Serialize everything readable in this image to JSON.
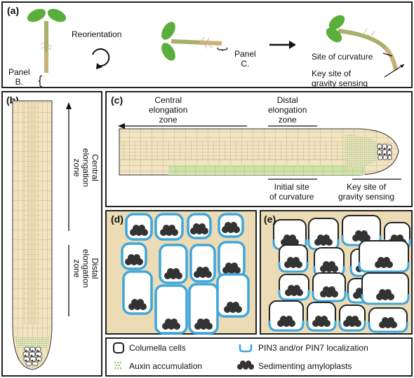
{
  "panel_a": {
    "label": "(a)",
    "reorientation": "Reorientation",
    "panel_b_ref": "Panel\nB.",
    "panel_c_ref": "Panel\nC.",
    "site_of_curvature": "Site of curvature",
    "key_site": "Key site of\ngravity sensing"
  },
  "panel_b": {
    "label": "(b)",
    "central_zone": "Central\nelongation\nzone",
    "distal_zone": "Distal\nelongation\nzone"
  },
  "panel_c": {
    "label": "(c)",
    "central_zone": "Central\nelongation\nzone",
    "distal_zone": "Distal\nelongation\nzone",
    "initial_site": "Initial site\nof curvature",
    "key_site": "Key site of\ngravity sensing"
  },
  "panel_d": {
    "label": "(d)"
  },
  "panel_e": {
    "label": "(e)"
  },
  "legend": {
    "columella": "Columella cells",
    "pin": "PIN3 and/or PIN7 localization",
    "auxin": "Auxin accumulation",
    "amyloplasts": "Sedimenting amyloplasts"
  },
  "colors": {
    "tan": "#ecdcb5",
    "root_tan": "#f2e4c0",
    "green": "#8cc46a",
    "pin_blue": "#3fa6dc",
    "cell_outline": "#222222",
    "amyloplast": "#333333"
  }
}
